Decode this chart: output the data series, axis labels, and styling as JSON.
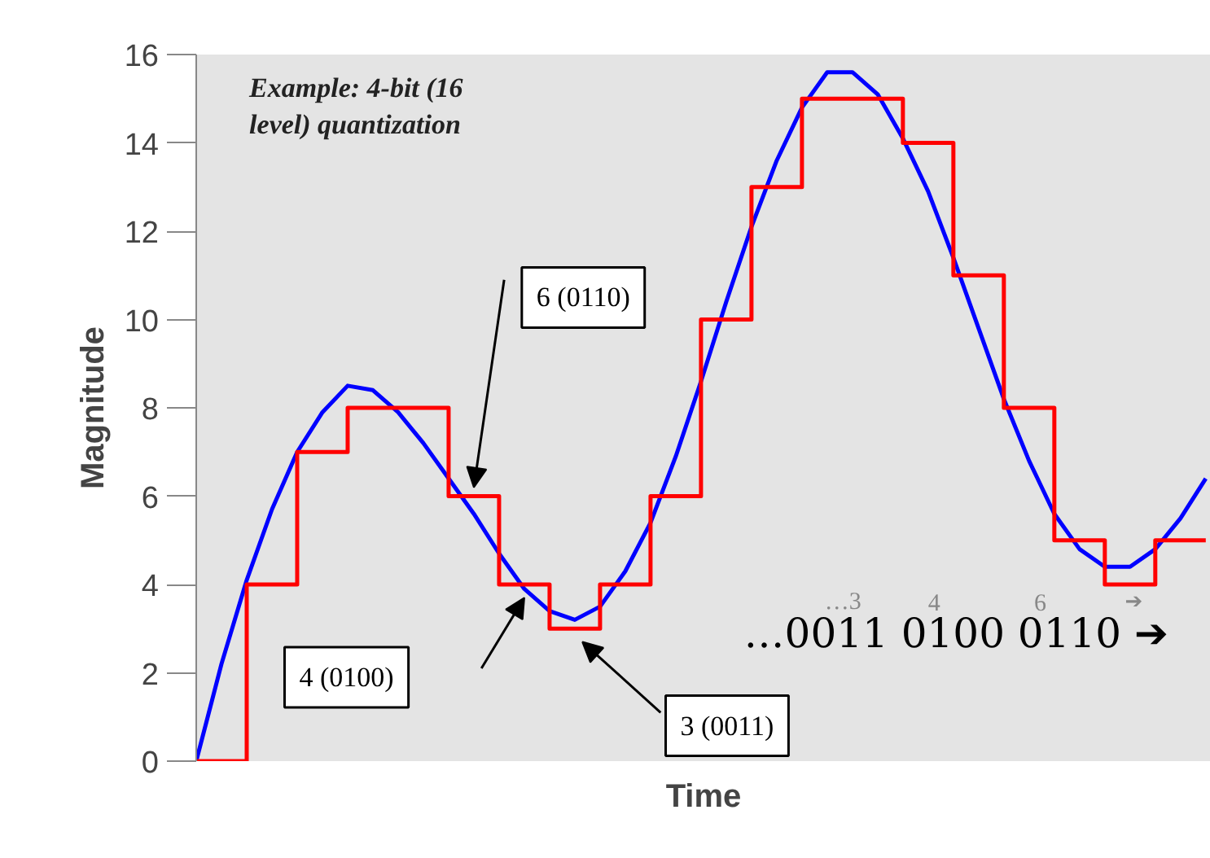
{
  "chart_data": {
    "type": "line",
    "xlabel": "Time",
    "ylabel": "Magnitude",
    "categories": [
      null,
      null,
      null,
      null,
      null,
      null,
      null,
      null,
      null,
      null,
      null,
      null,
      null,
      null,
      null,
      null,
      null,
      null,
      null,
      null,
      null,
      null,
      null,
      null,
      null,
      null,
      null,
      null,
      null,
      null,
      null,
      null,
      null,
      null,
      null,
      null,
      null,
      null,
      null,
      null,
      null
    ],
    "series": [
      {
        "color": "#0000ff",
        "values": [
          0,
          2.2,
          4.1,
          5.7,
          7.0,
          7.9,
          8.5,
          8.4,
          7.9,
          7.2,
          6.4,
          5.6,
          4.7,
          3.9,
          3.4,
          3.2,
          3.5,
          4.3,
          5.4,
          6.9,
          8.6,
          10.4,
          12.1,
          13.6,
          14.8,
          15.6,
          15.6,
          15.1,
          14.1,
          12.9,
          11.4,
          9.8,
          8.2,
          6.8,
          5.6,
          4.8,
          4.4,
          4.4,
          4.8,
          5.5,
          6.4
        ]
      },
      {
        "type": "step",
        "color": "#ff0000",
        "values": [
          0,
          0,
          4,
          4,
          7,
          7,
          8,
          8,
          8,
          8,
          6,
          6,
          4,
          4,
          3,
          3,
          4,
          4,
          6,
          6,
          10,
          10,
          13,
          13,
          15,
          15,
          15,
          15,
          14,
          14,
          11,
          11,
          8,
          8,
          5,
          5,
          4,
          4,
          5,
          5,
          5
        ]
      }
    ],
    "ylim": [
      0,
      16
    ],
    "yticks": [
      0,
      2,
      4,
      6,
      8,
      10,
      12,
      14,
      16
    ],
    "tick_labels": "y",
    "annotations": [
      "Example: 4-bit (16 level) quantization",
      "6 (0110)",
      "4 (0100)",
      "3 (0011)",
      "…0011 0100 0110 ➔",
      "…3",
      "4",
      "6",
      "➔"
    ]
  }
}
